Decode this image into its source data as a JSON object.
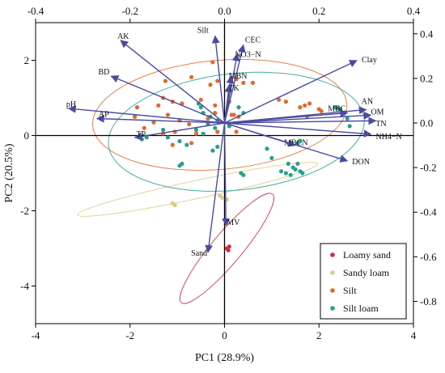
{
  "chart_data": {
    "type": "scatter",
    "subtype": "pca-biplot",
    "xlabel": "PC1 (28.9%)",
    "ylabel": "PC2 (20.5%)",
    "xlim": [
      -4,
      4
    ],
    "ylim": [
      -5,
      3
    ],
    "xticks": [
      -4,
      -2,
      0,
      2,
      4
    ],
    "yticks": [
      -4,
      -2,
      0,
      2
    ],
    "top_axis": {
      "lim": [
        -0.4,
        0.4
      ],
      "ticks": [
        -0.4,
        -0.2,
        0.0,
        0.2,
        0.4
      ],
      "tick_labels": [
        "-0.4",
        "-0.2",
        "0.0",
        "0.2",
        "0.4"
      ]
    },
    "right_axis": {
      "lim": [
        -0.9,
        0.45
      ],
      "ticks": [
        0.4,
        0.2,
        0.0,
        -0.2,
        -0.4,
        -0.6,
        -0.8
      ],
      "tick_labels": [
        "0.4",
        "0.2",
        "0.0",
        "-0.2",
        "-0.4",
        "-0.6",
        "-0.8"
      ]
    },
    "grid": false,
    "legend_position": "bottom-right",
    "loadings": [
      {
        "name": "Silt",
        "x": -0.02,
        "y": 0.39
      },
      {
        "name": "CEC",
        "x": 0.04,
        "y": 0.35
      },
      {
        "name": "AK",
        "x": -0.22,
        "y": 0.37
      },
      {
        "name": "NO3−N",
        "x": 0.027,
        "y": 0.31
      },
      {
        "name": "BD",
        "x": -0.24,
        "y": 0.21
      },
      {
        "name": "MBN",
        "x": 0.014,
        "y": 0.21
      },
      {
        "name": "TK",
        "x": 0.01,
        "y": 0.17
      },
      {
        "name": "Clay",
        "x": 0.28,
        "y": 0.28
      },
      {
        "name": "pH",
        "x": -0.33,
        "y": 0.065
      },
      {
        "name": "AP",
        "x": -0.27,
        "y": 0.02
      },
      {
        "name": "TP",
        "x": -0.19,
        "y": -0.065
      },
      {
        "name": "MBC",
        "x": 0.26,
        "y": 0.045
      },
      {
        "name": "AN",
        "x": 0.3,
        "y": 0.06
      },
      {
        "name": "OM",
        "x": 0.31,
        "y": 0.035
      },
      {
        "name": "TN",
        "x": 0.32,
        "y": 0.01
      },
      {
        "name": "NH4−N",
        "x": 0.31,
        "y": -0.05
      },
      {
        "name": "MBCN",
        "x": 0.15,
        "y": -0.1
      },
      {
        "name": "DON",
        "x": 0.26,
        "y": -0.17
      },
      {
        "name": "MV",
        "x": 0.003,
        "y": -0.46
      },
      {
        "name": "Sand",
        "x": -0.035,
        "y": -0.58
      }
    ],
    "series": [
      {
        "name": "Loamy sand",
        "color": "#cc2e44",
        "points": [
          [
            0.05,
            -3.0
          ],
          [
            0.1,
            -2.95
          ],
          [
            0.08,
            -3.05
          ]
        ],
        "ellipse": {
          "cx": 0.05,
          "cy": -3.0,
          "rx": 1.5,
          "ry": 0.4,
          "angle": 50
        }
      },
      {
        "name": "Sandy loam",
        "color": "#d9cd8a",
        "points": [
          [
            -1.1,
            -1.8
          ],
          [
            -1.05,
            -1.85
          ],
          [
            -0.1,
            -1.6
          ],
          [
            -0.05,
            -1.65
          ],
          [
            0.05,
            -1.7
          ]
        ],
        "ellipse": {
          "cx": -0.57,
          "cy": -1.43,
          "rx": 2.6,
          "ry": 0.24,
          "angle": 12
        }
      },
      {
        "name": "Silt",
        "color": "#e06a2e",
        "points": [
          [
            -0.25,
            1.95
          ],
          [
            -0.7,
            1.55
          ],
          [
            -1.25,
            1.45
          ],
          [
            -0.3,
            1.35
          ],
          [
            -0.15,
            1.45
          ],
          [
            0.25,
            1.5
          ],
          [
            0.4,
            1.4
          ],
          [
            0.6,
            1.4
          ],
          [
            -1.3,
            1.0
          ],
          [
            -1.4,
            0.8
          ],
          [
            -1.1,
            0.9
          ],
          [
            -0.9,
            0.85
          ],
          [
            -0.5,
            0.95
          ],
          [
            -0.2,
            0.8
          ],
          [
            -1.85,
            0.75
          ],
          [
            -1.2,
            0.55
          ],
          [
            -0.95,
            0.4
          ],
          [
            -0.75,
            0.3
          ],
          [
            -1.9,
            0.5
          ],
          [
            -1.5,
            0.35
          ],
          [
            -1.7,
            0.2
          ],
          [
            -1.05,
            0.1
          ],
          [
            -0.6,
            0.05
          ],
          [
            -0.15,
            0.1
          ],
          [
            -1.1,
            -0.25
          ],
          [
            -0.7,
            -0.2
          ],
          [
            -0.35,
            0.45
          ],
          [
            -0.2,
            0.6
          ],
          [
            0.1,
            0.9
          ],
          [
            0.2,
            0.55
          ],
          [
            0.3,
            0.5
          ],
          [
            1.15,
            0.95
          ],
          [
            1.3,
            0.9
          ],
          [
            1.6,
            0.75
          ],
          [
            1.7,
            0.8
          ],
          [
            1.8,
            0.85
          ],
          [
            1.75,
            0.5
          ],
          [
            2.0,
            0.7
          ],
          [
            2.05,
            0.65
          ],
          [
            -1.8,
            -0.05
          ],
          [
            -1.3,
            0.05
          ],
          [
            0.15,
            0.55
          ],
          [
            0.25,
            0.1
          ]
        ],
        "ellipse": {
          "cx": -0.1,
          "cy": 0.55,
          "rx": 2.7,
          "ry": 1.45,
          "angle": 5
        }
      },
      {
        "name": "Silt loam",
        "color": "#28a08c",
        "points": [
          [
            -0.55,
            0.85
          ],
          [
            -0.5,
            0.75
          ],
          [
            -0.45,
            0.6
          ],
          [
            -0.3,
            0.5
          ],
          [
            -0.15,
            0.4
          ],
          [
            0.3,
            0.75
          ],
          [
            0.4,
            0.6
          ],
          [
            -0.35,
            0.3
          ],
          [
            -0.2,
            0.2
          ],
          [
            -0.6,
            0.15
          ],
          [
            -0.45,
            0.05
          ],
          [
            0.1,
            0.25
          ],
          [
            -1.75,
            -0.1
          ],
          [
            -1.65,
            -0.05
          ],
          [
            -1.3,
            0.15
          ],
          [
            -1.2,
            -0.05
          ],
          [
            -0.95,
            -0.15
          ],
          [
            -0.8,
            -0.25
          ],
          [
            -0.25,
            -0.4
          ],
          [
            -0.15,
            -0.3
          ],
          [
            -0.95,
            -0.8
          ],
          [
            -0.9,
            -0.75
          ],
          [
            0.35,
            -1.0
          ],
          [
            0.4,
            -1.05
          ],
          [
            1.2,
            -0.95
          ],
          [
            1.3,
            -1.0
          ],
          [
            1.4,
            -1.05
          ],
          [
            1.5,
            -0.9
          ],
          [
            1.45,
            -0.85
          ],
          [
            1.6,
            -0.95
          ],
          [
            1.65,
            -1.0
          ],
          [
            1.35,
            -0.75
          ],
          [
            1.55,
            -0.75
          ],
          [
            1.0,
            -0.6
          ],
          [
            0.9,
            -0.35
          ],
          [
            1.6,
            -0.15
          ],
          [
            1.55,
            -0.2
          ],
          [
            2.35,
            0.75
          ],
          [
            2.4,
            0.72
          ],
          [
            2.45,
            0.7
          ],
          [
            2.6,
            0.45
          ],
          [
            2.65,
            0.25
          ]
        ],
        "ellipse": {
          "cx": 0.25,
          "cy": 0.1,
          "rx": 2.72,
          "ry": 1.55,
          "angle": 6
        }
      }
    ]
  }
}
